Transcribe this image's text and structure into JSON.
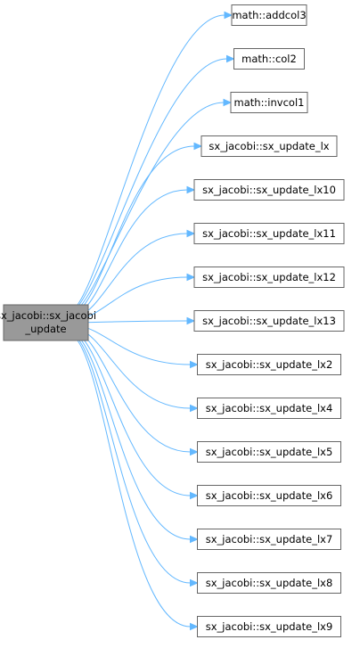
{
  "diagram": {
    "root": {
      "lines": [
        "sx_jacobi::sx_jacobi",
        "_update"
      ],
      "fill": "#999999",
      "stroke": "#666666"
    },
    "callees": [
      "math::addcol3",
      "math::col2",
      "math::invcol1",
      "sx_jacobi::sx_update_lx",
      "sx_jacobi::sx_update_lx10",
      "sx_jacobi::sx_update_lx11",
      "sx_jacobi::sx_update_lx12",
      "sx_jacobi::sx_update_lx13",
      "sx_jacobi::sx_update_lx2",
      "sx_jacobi::sx_update_lx4",
      "sx_jacobi::sx_update_lx5",
      "sx_jacobi::sx_update_lx6",
      "sx_jacobi::sx_update_lx7",
      "sx_jacobi::sx_update_lx8",
      "sx_jacobi::sx_update_lx9"
    ],
    "colors": {
      "edge": "#63b8ff",
      "node_fill": "#ffffff",
      "node_stroke": "#666666"
    }
  }
}
